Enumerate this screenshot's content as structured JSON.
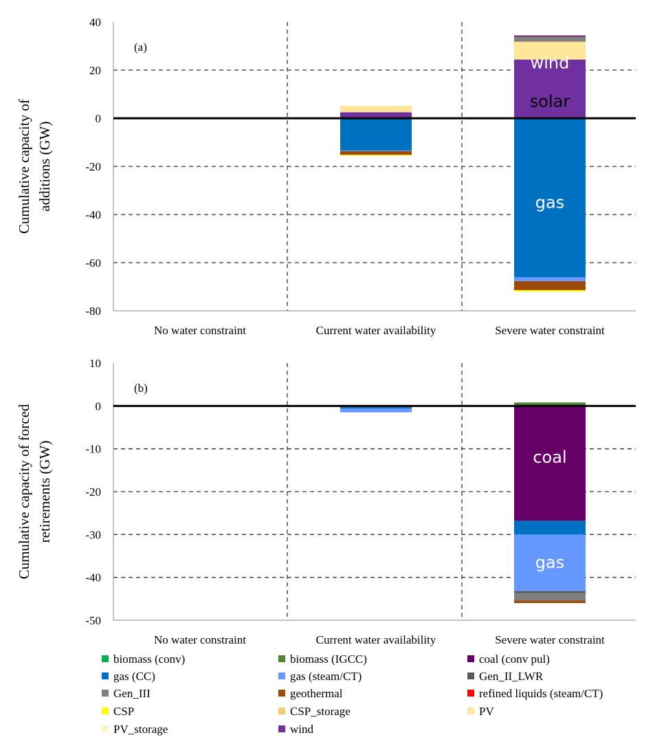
{
  "colors": {
    "biomass (conv)": "#00b050",
    "biomass (IGCC)": "#548235",
    "coal (conv pul)": "#660066",
    "gas (CC)": "#0070c0",
    "gas (steam/CT)": "#6699ff",
    "Gen_II_LWR": "#595959",
    "Gen_III": "#7f7f7f",
    "geothermal": "#9c4a0a",
    "refined liquids (steam/CT)": "#ff0000",
    "CSP": "#ffff00",
    "CSP_storage": "#f8cb6b",
    "PV": "#ffe699",
    "PV_storage": "#fff2cc",
    "wind": "#7030a0"
  },
  "legend": [
    "biomass (conv)",
    "biomass (IGCC)",
    "coal (conv pul)",
    "gas (CC)",
    "gas (steam/CT)",
    "Gen_II_LWR",
    "Gen_III",
    "geothermal",
    "refined liquids (steam/CT)",
    "CSP",
    "CSP_storage",
    "PV",
    "PV_storage",
    "wind"
  ],
  "chart_data": [
    {
      "type": "bar",
      "stacked": true,
      "panel_label": "(a)",
      "ylabel": "Cumulative capacity of additions (GW)",
      "ylim": [
        -80,
        40
      ],
      "yticks": [
        40,
        20,
        0,
        -20,
        -40,
        -60,
        -80
      ],
      "grid": true,
      "categories": [
        "No water constraint",
        "Current water availability",
        "Severe water constraint"
      ],
      "series": [
        {
          "name": "wind",
          "values": [
            0,
            2.5,
            24.4
          ]
        },
        {
          "name": "PV",
          "values": [
            0,
            2.6,
            7.4
          ]
        },
        {
          "name": "Gen_III",
          "values": [
            0,
            0,
            2.2
          ]
        },
        {
          "name": "coal (conv pul)",
          "values": [
            0,
            0,
            0.4
          ]
        },
        {
          "name": "gas (CC)",
          "values": [
            0,
            -13.4,
            -66
          ]
        },
        {
          "name": "gas (steam/CT)",
          "values": [
            0,
            -0.3,
            -1.7
          ]
        },
        {
          "name": "geothermal",
          "values": [
            0,
            -1.5,
            -3.7
          ]
        },
        {
          "name": "CSP",
          "values": [
            0,
            -0.4,
            -0.6
          ]
        }
      ],
      "annotations": [
        {
          "text": "wind",
          "category": "Severe water constraint",
          "y": 23,
          "color": "#ffffff"
        },
        {
          "text": "solar",
          "category": "Severe water constraint",
          "y": 7,
          "color": "#000000"
        },
        {
          "text": "gas",
          "category": "Severe water constraint",
          "y": -35,
          "color": "#ffffff"
        }
      ]
    },
    {
      "type": "bar",
      "stacked": true,
      "panel_label": "(b)",
      "ylabel": "Cumulative capacity of forced retirements (GW)",
      "ylim": [
        -50,
        10
      ],
      "yticks": [
        10,
        0,
        -10,
        -20,
        -30,
        -40,
        -50
      ],
      "grid": true,
      "categories": [
        "No water constraint",
        "Current water availability",
        "Severe water constraint"
      ],
      "series": [
        {
          "name": "biomass (IGCC)",
          "values": [
            0,
            0,
            0.8
          ]
        },
        {
          "name": "coal (conv pul)",
          "values": [
            0,
            -0.3,
            -26.8
          ]
        },
        {
          "name": "gas (CC)",
          "values": [
            0,
            -0.3,
            -3.2
          ]
        },
        {
          "name": "gas (steam/CT)",
          "values": [
            0,
            -0.9,
            -13.2
          ]
        },
        {
          "name": "Gen_II_LWR",
          "values": [
            0,
            0,
            -0.5
          ]
        },
        {
          "name": "Gen_III",
          "values": [
            0,
            0,
            -1.7
          ]
        },
        {
          "name": "geothermal",
          "values": [
            0,
            0,
            -0.6
          ]
        }
      ],
      "annotations": [
        {
          "text": "coal",
          "category": "Severe water constraint",
          "y": -12,
          "color": "#ffffff"
        },
        {
          "text": "gas",
          "category": "Severe water constraint",
          "y": -36.5,
          "color": "#ffffff"
        }
      ]
    }
  ]
}
